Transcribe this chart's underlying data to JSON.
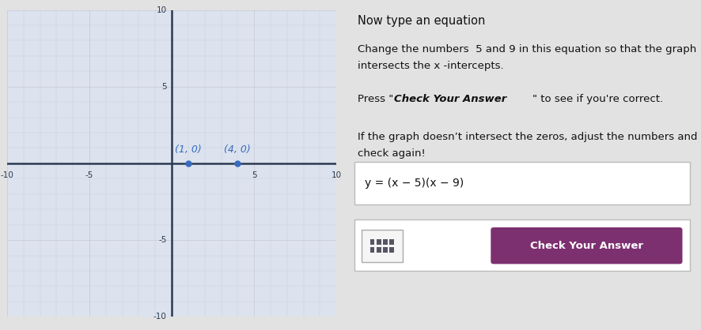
{
  "graph": {
    "xlim": [
      -10,
      10
    ],
    "ylim": [
      -10,
      10
    ],
    "xticks": [
      -10,
      -5,
      0,
      5,
      10
    ],
    "yticks": [
      -10,
      -5,
      0,
      5,
      10
    ],
    "grid_color": "#c8cdd8",
    "axis_color": "#2b3a52",
    "bg_color": "#dce3ee",
    "outer_bg": "#d0d5de",
    "points": [
      [
        1,
        0
      ],
      [
        4,
        0
      ]
    ],
    "point_color": "#3a6bbf",
    "point_labels": [
      "(1, 0)",
      "(4, 0)"
    ],
    "point_label_color": "#3a6bbf",
    "point_label_fontsize": 9
  },
  "panel": {
    "bg_color": "#e2e2e2",
    "title": "Now type an equation",
    "title_fontsize": 10.5,
    "title_color": "#111111",
    "body_fontsize": 9.5,
    "body_color": "#111111",
    "equation_text": "y = (x − 5)(x − 9)",
    "equation_fontsize": 10,
    "equation_box_facecolor": "#ffffff",
    "equation_box_edgecolor": "#bbbbbb",
    "button_text": "Check Your Answer",
    "button_bg": "#7d3070",
    "button_text_color": "#ffffff",
    "button_fontsize": 9.5,
    "icon_box_facecolor": "#f5f5f5",
    "icon_box_edgecolor": "#aaaaaa",
    "icon_color": "#555566"
  }
}
